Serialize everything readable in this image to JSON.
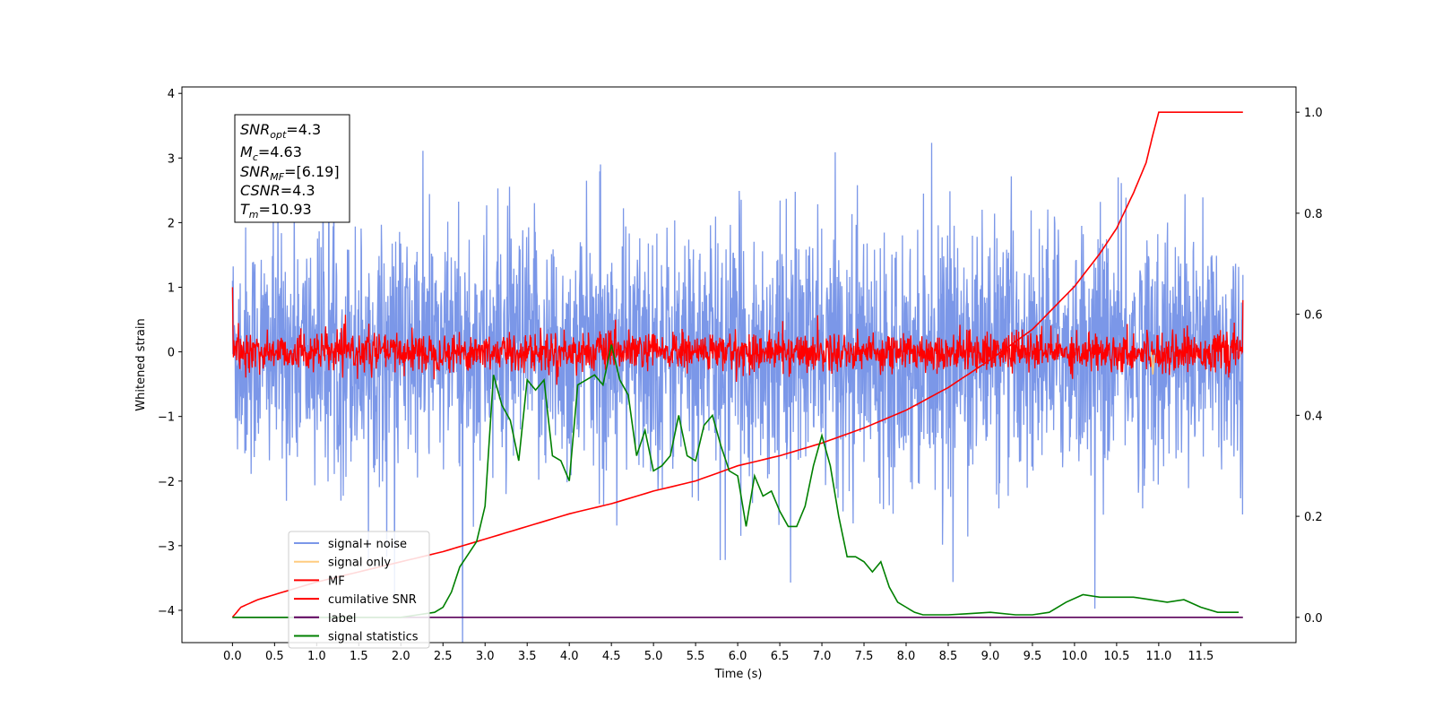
{
  "chart_data": {
    "type": "line",
    "xlabel": "Time (s)",
    "ylabel": "Whitened strain",
    "xlim": [
      -0.6,
      12.63
    ],
    "ylim_left": [
      -4.5,
      4.1
    ],
    "ylim_right": [
      -0.05,
      1.05
    ],
    "grid": false,
    "legend_position": "lower-left",
    "x_ticks": [
      "0.0",
      "0.5",
      "1.0",
      "1.5",
      "2.0",
      "2.5",
      "3.0",
      "3.5",
      "4.0",
      "4.5",
      "5.0",
      "5.5",
      "6.0",
      "6.5",
      "7.0",
      "7.5",
      "8.0",
      "8.5",
      "9.0",
      "9.5",
      "10.0",
      "10.5",
      "11.0",
      "11.5"
    ],
    "y_ticks_left": [
      "4",
      "3",
      "2",
      "1",
      "0",
      "−1",
      "−2",
      "−3",
      "−4"
    ],
    "y_tick_values_left": [
      4,
      3,
      2,
      1,
      0,
      -1,
      -2,
      -3,
      -4
    ],
    "y_ticks_right": [
      "1.0",
      "0.8",
      "0.6",
      "0.4",
      "0.2",
      "0.0"
    ],
    "y_tick_values_right": [
      1.0,
      0.8,
      0.6,
      0.4,
      0.2,
      0.0
    ],
    "info_box": {
      "line1": {
        "sym": "SNR",
        "sub": "opt",
        "rest": "=4.3"
      },
      "line2": {
        "sym": "M",
        "sub": "c",
        "rest": "=4.63"
      },
      "line3": {
        "sym": "SNR",
        "sub": "MF",
        "rest": "=[6.19]"
      },
      "line4": {
        "sym": "CSNR",
        "sub": "",
        "rest": "=4.3"
      },
      "line5": {
        "sym": "T",
        "sub": "m",
        "rest": "=10.93"
      }
    },
    "series": [
      {
        "name": "signal+ noise",
        "color": "#7b97e8",
        "axis": "left",
        "noise_amplitude": 0.95,
        "duration": 12.0
      },
      {
        "name": "signal only",
        "color": "#ffcc80",
        "axis": "left",
        "blip_time": 10.93,
        "blip_value": -0.35
      },
      {
        "name": "MF",
        "color": "#ff0000",
        "axis": "left",
        "noise_amplitude": 0.15,
        "start_value": 1.0,
        "end_value": 0.8
      },
      {
        "name": "cumilative SNR",
        "color": "#ff0000",
        "axis": "right",
        "merger_time": 10.93,
        "x": [
          0.0,
          0.1,
          0.3,
          0.6,
          1.0,
          1.5,
          2.0,
          2.5,
          3.0,
          3.5,
          4.0,
          4.5,
          5.0,
          5.5,
          6.0,
          6.5,
          7.0,
          7.5,
          8.0,
          8.5,
          9.0,
          9.5,
          10.0,
          10.3,
          10.5,
          10.7,
          10.85,
          10.93,
          11.0,
          11.5,
          12.0
        ],
        "values": [
          0.0,
          0.02,
          0.035,
          0.05,
          0.07,
          0.09,
          0.11,
          0.13,
          0.155,
          0.18,
          0.205,
          0.225,
          0.25,
          0.27,
          0.3,
          0.32,
          0.345,
          0.375,
          0.41,
          0.455,
          0.51,
          0.57,
          0.655,
          0.72,
          0.77,
          0.84,
          0.9,
          0.955,
          1.0,
          1.0,
          1.0
        ]
      },
      {
        "name": "label",
        "color": "#5a005a",
        "axis": "right",
        "x": [
          0.0,
          12.0
        ],
        "values": [
          0.0,
          0.0
        ]
      },
      {
        "name": "signal statistics",
        "color": "#008000",
        "axis": "right",
        "x": [
          0.0,
          0.5,
          1.0,
          1.5,
          2.0,
          2.2,
          2.4,
          2.5,
          2.6,
          2.7,
          2.8,
          2.9,
          3.0,
          3.1,
          3.2,
          3.3,
          3.4,
          3.5,
          3.6,
          3.7,
          3.8,
          3.9,
          4.0,
          4.1,
          4.2,
          4.3,
          4.4,
          4.5,
          4.6,
          4.7,
          4.8,
          4.9,
          5.0,
          5.1,
          5.2,
          5.3,
          5.4,
          5.5,
          5.6,
          5.7,
          5.8,
          5.9,
          6.0,
          6.1,
          6.2,
          6.3,
          6.4,
          6.5,
          6.6,
          6.7,
          6.8,
          6.9,
          7.0,
          7.1,
          7.2,
          7.3,
          7.4,
          7.5,
          7.6,
          7.7,
          7.8,
          7.9,
          8.0,
          8.1,
          8.2,
          8.3,
          8.5,
          8.7,
          9.0,
          9.3,
          9.5,
          9.7,
          9.9,
          10.1,
          10.3,
          10.5,
          10.7,
          10.9,
          11.1,
          11.3,
          11.5,
          11.7,
          11.95
        ],
        "values": [
          0.0,
          0.0,
          0.0,
          0.0,
          0.0,
          0.005,
          0.01,
          0.02,
          0.05,
          0.1,
          0.125,
          0.15,
          0.22,
          0.48,
          0.42,
          0.39,
          0.31,
          0.47,
          0.45,
          0.47,
          0.32,
          0.31,
          0.27,
          0.46,
          0.47,
          0.48,
          0.46,
          0.54,
          0.47,
          0.44,
          0.32,
          0.37,
          0.29,
          0.3,
          0.32,
          0.4,
          0.32,
          0.31,
          0.38,
          0.4,
          0.34,
          0.29,
          0.28,
          0.18,
          0.28,
          0.24,
          0.25,
          0.21,
          0.18,
          0.18,
          0.22,
          0.3,
          0.36,
          0.3,
          0.2,
          0.12,
          0.12,
          0.11,
          0.09,
          0.11,
          0.06,
          0.03,
          0.02,
          0.01,
          0.005,
          0.005,
          0.005,
          0.007,
          0.01,
          0.005,
          0.005,
          0.01,
          0.03,
          0.045,
          0.04,
          0.04,
          0.04,
          0.035,
          0.03,
          0.035,
          0.02,
          0.01,
          0.01
        ]
      }
    ]
  }
}
